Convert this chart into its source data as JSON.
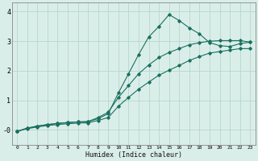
{
  "xlabel": "Humidex (Indice chaleur)",
  "bg_color": "#daeee9",
  "grid_color": "#b5d5ce",
  "line_color": "#1a7060",
  "xlim": [
    -0.5,
    23.5
  ],
  "ylim": [
    -0.5,
    4.3
  ],
  "xticks": [
    0,
    1,
    2,
    3,
    4,
    5,
    6,
    7,
    8,
    9,
    10,
    11,
    12,
    13,
    14,
    15,
    16,
    17,
    18,
    19,
    20,
    21,
    22,
    23
  ],
  "yticks": [
    0,
    1,
    2,
    3,
    4
  ],
  "ytick_labels": [
    "-0",
    "1",
    "2",
    "3",
    "4"
  ],
  "series": [
    {
      "x": [
        0,
        1,
        2,
        3,
        4,
        5,
        6,
        7,
        8,
        9,
        10,
        11,
        12,
        13,
        14,
        15,
        16,
        17,
        18,
        19,
        20,
        21,
        22,
        23
      ],
      "y": [
        -0.05,
        0.06,
        0.13,
        0.18,
        0.22,
        0.25,
        0.27,
        0.28,
        0.38,
        0.55,
        1.25,
        1.9,
        2.55,
        3.15,
        3.5,
        3.9,
        3.7,
        3.45,
        3.25,
        2.95,
        2.85,
        2.82,
        2.92,
        2.97
      ]
    },
    {
      "x": [
        0,
        1,
        2,
        3,
        4,
        5,
        6,
        7,
        8,
        9,
        10,
        11,
        12,
        13,
        14,
        15,
        16,
        17,
        18,
        19,
        20,
        21,
        22,
        23
      ],
      "y": [
        -0.05,
        0.06,
        0.13,
        0.18,
        0.22,
        0.25,
        0.27,
        0.28,
        0.42,
        0.6,
        1.1,
        1.5,
        1.9,
        2.2,
        2.45,
        2.62,
        2.75,
        2.88,
        2.95,
        3.0,
        3.02,
        3.02,
        3.02,
        2.97
      ]
    },
    {
      "x": [
        0,
        1,
        2,
        3,
        4,
        5,
        6,
        7,
        8,
        9,
        10,
        11,
        12,
        13,
        14,
        15,
        16,
        17,
        18,
        19,
        20,
        21,
        22,
        23
      ],
      "y": [
        -0.05,
        0.04,
        0.1,
        0.15,
        0.18,
        0.21,
        0.23,
        0.24,
        0.32,
        0.42,
        0.8,
        1.1,
        1.38,
        1.62,
        1.85,
        2.02,
        2.18,
        2.35,
        2.48,
        2.6,
        2.65,
        2.7,
        2.75,
        2.75
      ]
    }
  ]
}
